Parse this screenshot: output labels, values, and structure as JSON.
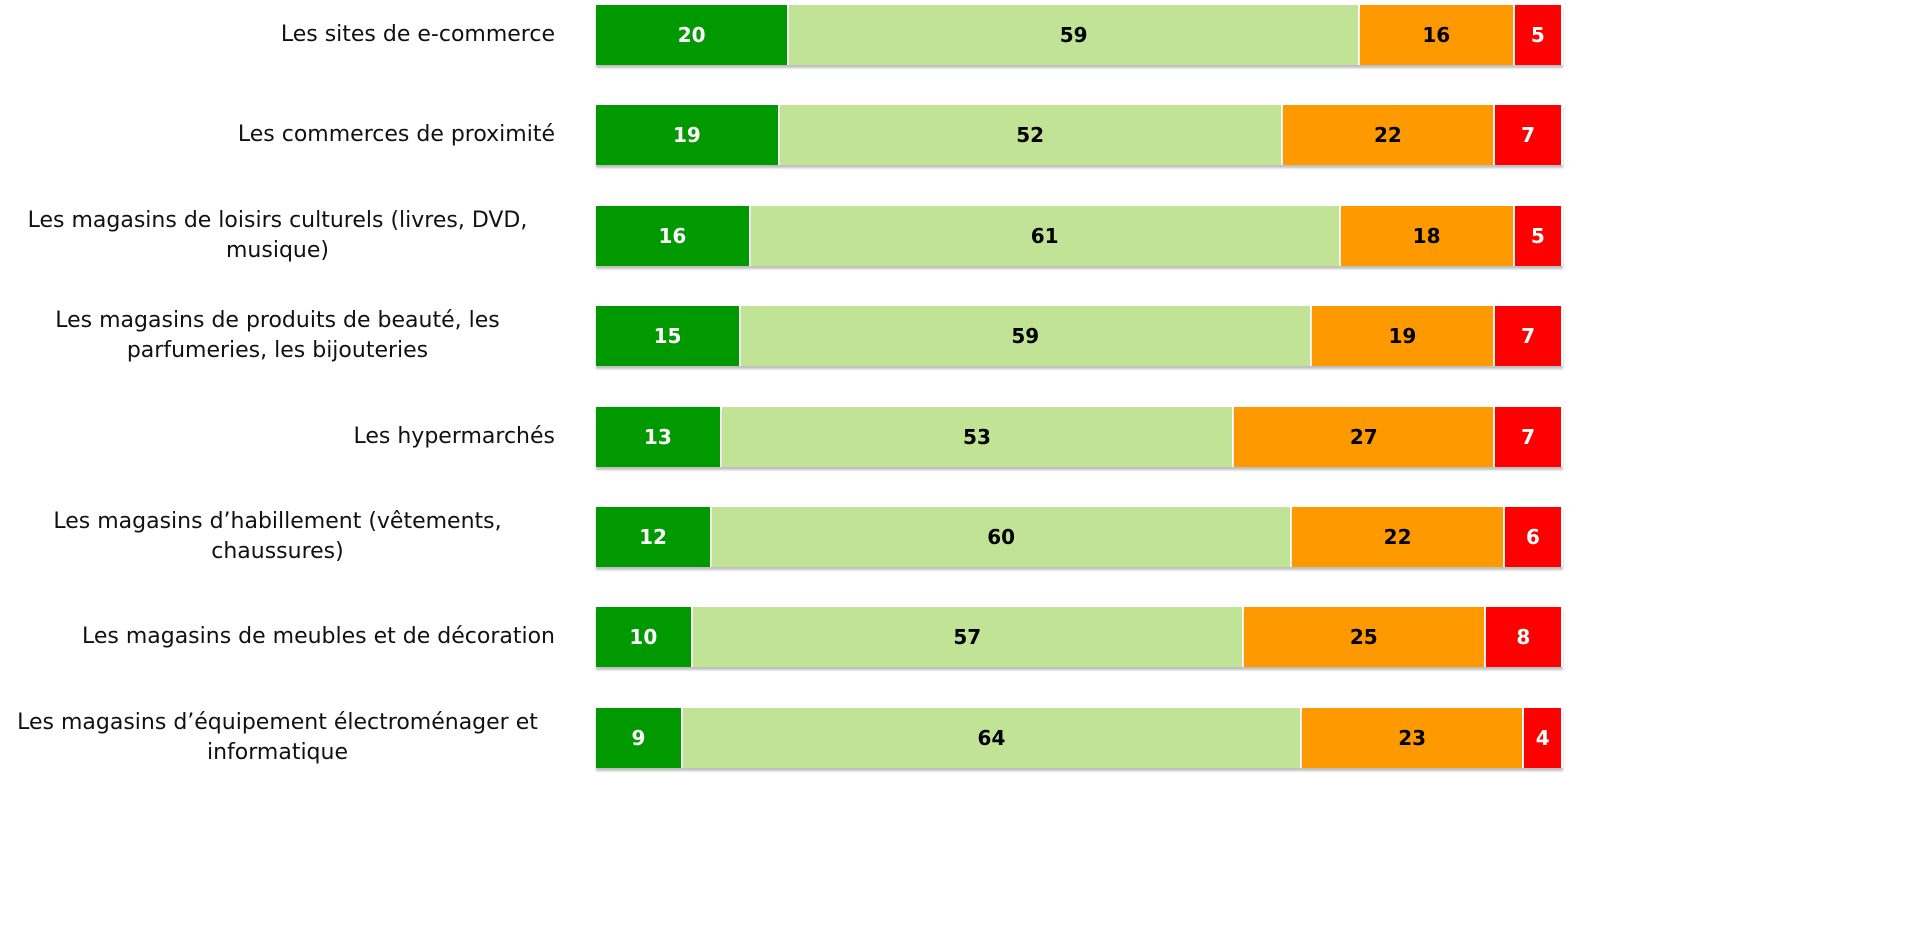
{
  "chart_data": {
    "type": "stacked-bar-horizontal",
    "categories": [
      "Les sites de e-commerce",
      "Les commerces de proximité",
      "Les magasins de loisirs culturels (livres, DVD, musique)",
      "Les magasins de produits de beauté, les parfumeries, les bijouteries",
      "Les hypermarchés",
      "Les magasins d’habillement (vêtements, chaussures)",
      "Les magasins de meubles et de décoration",
      "Les magasins d’équipement électroménager et informatique"
    ],
    "series": [
      {
        "color": "#009a00",
        "label_color": "#ffffff",
        "values": [
          20,
          19,
          16,
          15,
          13,
          12,
          10,
          9
        ]
      },
      {
        "color": "#c0e396",
        "label_color": "#000000",
        "values": [
          59,
          52,
          61,
          59,
          53,
          60,
          57,
          64
        ]
      },
      {
        "color": "#ff9900",
        "label_color": "#000000",
        "values": [
          16,
          22,
          18,
          19,
          27,
          22,
          25,
          23
        ]
      },
      {
        "color": "#ff0000",
        "label_color": "#ffffff",
        "values": [
          5,
          7,
          5,
          7,
          7,
          6,
          8,
          4
        ]
      }
    ],
    "xlim": [
      0,
      100
    ]
  }
}
